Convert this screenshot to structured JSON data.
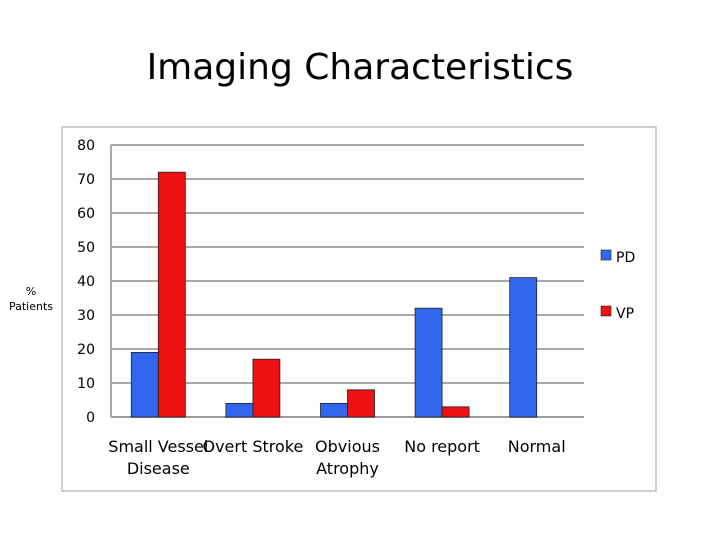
{
  "title": "Imaging Characteristics",
  "ylabel_lines": [
    "%",
    "Patients"
  ],
  "chart_data": {
    "type": "bar",
    "title": "Imaging Characteristics",
    "xlabel": "",
    "ylabel": "% Patients",
    "ylim": [
      0,
      80
    ],
    "yticks": [
      0,
      10,
      20,
      30,
      40,
      50,
      60,
      70,
      80
    ],
    "grid": true,
    "legend_position": "right",
    "categories": [
      [
        "Small Vessel",
        "Disease"
      ],
      [
        "Overt Stroke"
      ],
      [
        "Obvious",
        "Atrophy"
      ],
      [
        "No report"
      ],
      [
        "Normal"
      ]
    ],
    "series": [
      {
        "name": "PD",
        "color": "#3366ee",
        "values": [
          19,
          4,
          4,
          32,
          41
        ]
      },
      {
        "name": "VP",
        "color": "#ee1111",
        "values": [
          72,
          17,
          8,
          3,
          null
        ]
      }
    ]
  }
}
